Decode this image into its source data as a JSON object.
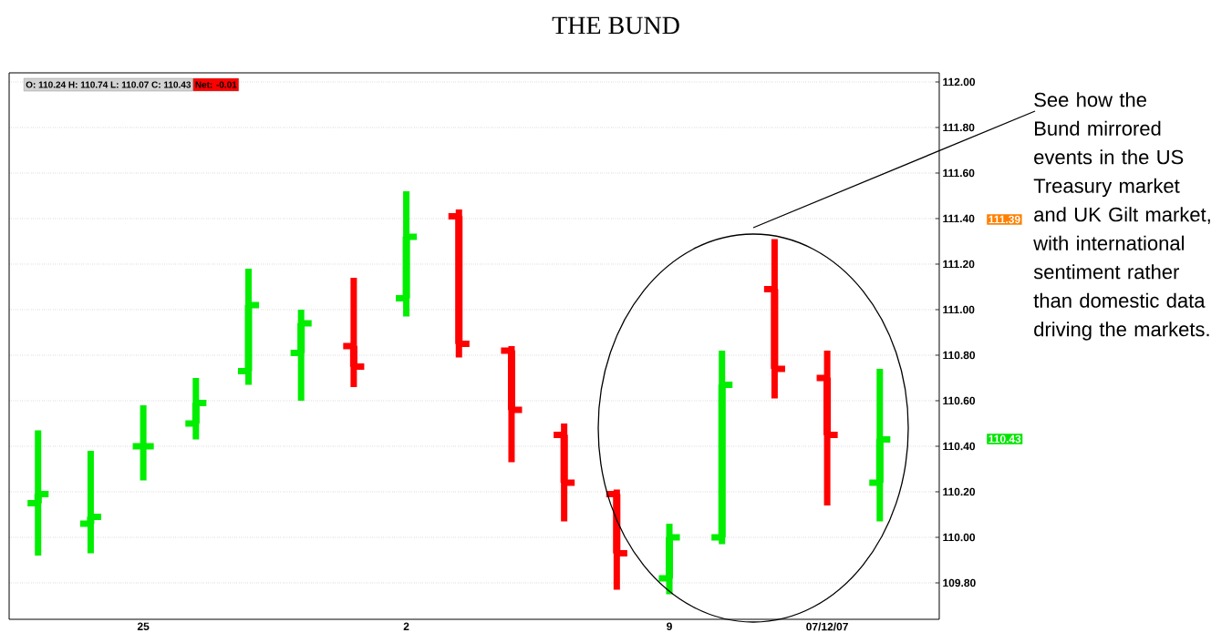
{
  "chart_data": {
    "type": "candlestick",
    "title": "THE BUND",
    "categories": [
      null,
      null,
      "25",
      null,
      null,
      null,
      null,
      "2",
      null,
      null,
      null,
      null,
      "9",
      null,
      null,
      "07/12/07",
      null
    ],
    "ohlc": [
      [
        110.15,
        110.47,
        109.92,
        110.19
      ],
      [
        110.06,
        110.38,
        109.93,
        110.09
      ],
      [
        110.4,
        110.58,
        110.25,
        110.4
      ],
      [
        110.5,
        110.7,
        110.43,
        110.59
      ],
      [
        110.73,
        111.18,
        110.67,
        111.02
      ],
      [
        110.81,
        111.0,
        110.6,
        110.94
      ],
      [
        110.84,
        111.14,
        110.66,
        110.75
      ],
      [
        111.05,
        111.52,
        110.97,
        111.32
      ],
      [
        111.41,
        111.44,
        110.79,
        110.85
      ],
      [
        110.82,
        110.84,
        110.33,
        110.56
      ],
      [
        110.45,
        110.5,
        110.07,
        110.24
      ],
      [
        110.19,
        110.21,
        109.77,
        109.93
      ],
      [
        109.82,
        110.06,
        109.75,
        110.0
      ],
      [
        110.0,
        110.82,
        109.97,
        110.67
      ],
      [
        111.09,
        111.31,
        110.61,
        110.74
      ],
      [
        110.7,
        110.82,
        110.14,
        110.45
      ],
      [
        110.24,
        110.74,
        110.07,
        110.43
      ]
    ],
    "colors": [
      "#00ee00",
      "#00ee00",
      "#00ee00",
      "#00ee00",
      "#00ee00",
      "#00ee00",
      "#ff0000",
      "#00ee00",
      "#ff0000",
      "#ff0000",
      "#ff0000",
      "#ff0000",
      "#00ee00",
      "#00ee00",
      "#ff0000",
      "#ff0000",
      "#00ee00"
    ],
    "ylim": [
      109.64,
      112.04
    ],
    "yticks": [
      {
        "value": 109.8,
        "label": "109.80"
      },
      {
        "value": 110.0,
        "label": "110.00"
      },
      {
        "value": 110.2,
        "label": "110.20"
      },
      {
        "value": 110.4,
        "label": "110.40"
      },
      {
        "value": 110.6,
        "label": "110.60"
      },
      {
        "value": 110.8,
        "label": "110.80"
      },
      {
        "value": 111.0,
        "label": "111.00"
      },
      {
        "value": 111.2,
        "label": "111.20"
      },
      {
        "value": 111.4,
        "label": "111.40"
      },
      {
        "value": 111.6,
        "label": "111.60"
      },
      {
        "value": 111.8,
        "label": "111.80"
      },
      {
        "value": 112.0,
        "label": "112.00"
      }
    ],
    "grid": "y",
    "annotations": [
      "O: 110.24   H: 110.74   L: 110.07   C: 110.43",
      "Net: -0.01",
      "111.39",
      "110.43",
      "See how the Bund mirrored events in the US Treasury market and UK Gilt market, with international sentiment rather than domestic data driving the markets."
    ]
  }
}
